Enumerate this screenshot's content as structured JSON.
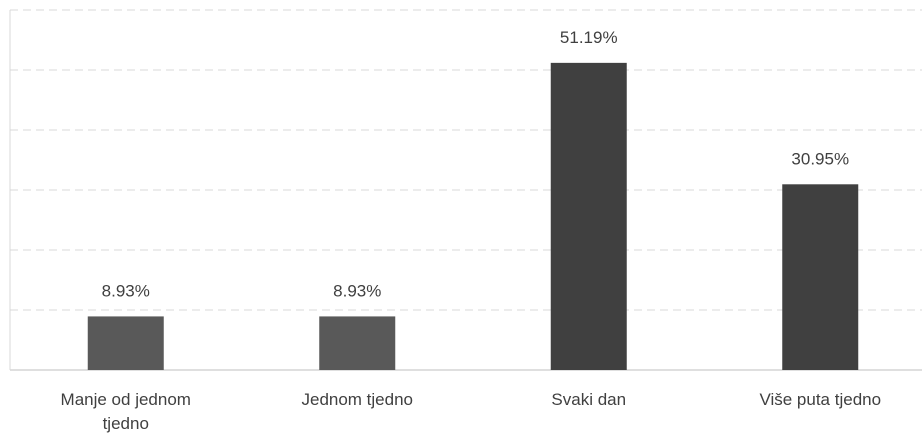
{
  "chart_data": {
    "type": "bar",
    "categories": [
      "Manje od jednom tjedno",
      "Jednom tjedno",
      "Svaki dan",
      "Više puta tjedno"
    ],
    "values": [
      8.93,
      8.93,
      51.19,
      30.95
    ],
    "value_labels": [
      "8.93%",
      "8.93%",
      "51.19%",
      "30.95%"
    ],
    "colors": [
      "#595959",
      "#595959",
      "#404040",
      "#404040"
    ],
    "ylim": [
      0,
      60
    ],
    "yticks": [
      0,
      10,
      20,
      30,
      40,
      50,
      60
    ],
    "grid": true
  }
}
